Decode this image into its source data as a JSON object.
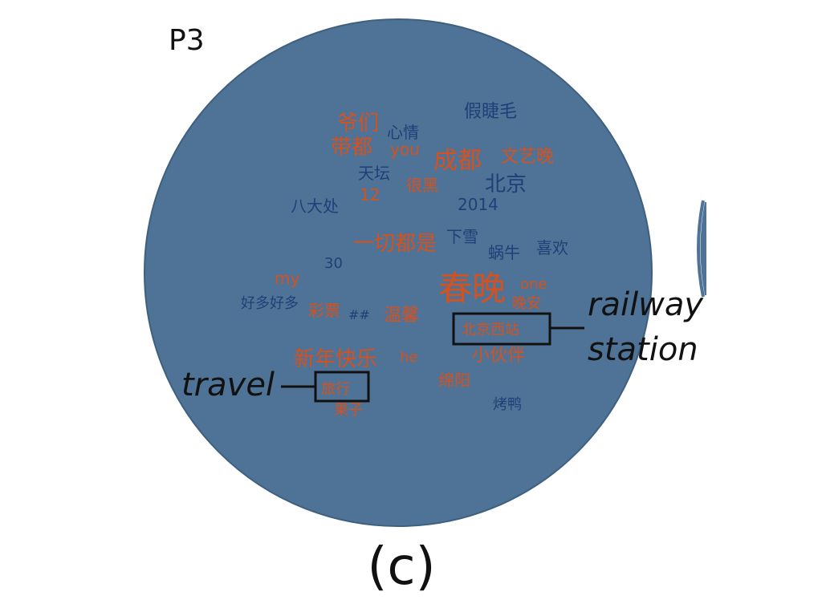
{
  "panel_label": "P3",
  "caption": "(c)",
  "colors": {
    "circle": "#4f7396",
    "circle_edge": "#3f5f7e",
    "orange": "#d4521f",
    "navy": "#1f3f78",
    "box": "#111111"
  },
  "words": [
    {
      "text": "爷们",
      "color": "orange"
    },
    {
      "text": "心情",
      "color": "navy"
    },
    {
      "text": "假睫毛",
      "color": "navy"
    },
    {
      "text": "带都",
      "color": "orange"
    },
    {
      "text": "you",
      "color": "orange"
    },
    {
      "text": "成都",
      "color": "orange"
    },
    {
      "text": "文艺晚",
      "color": "orange"
    },
    {
      "text": "天坛",
      "color": "navy"
    },
    {
      "text": "很黑",
      "color": "orange"
    },
    {
      "text": "北京",
      "color": "navy"
    },
    {
      "text": "12",
      "color": "orange"
    },
    {
      "text": "八大处",
      "color": "navy"
    },
    {
      "text": "2014",
      "color": "navy"
    },
    {
      "text": "一切都是",
      "color": "orange"
    },
    {
      "text": "下雪",
      "color": "navy"
    },
    {
      "text": "蜗牛",
      "color": "navy"
    },
    {
      "text": "喜欢",
      "color": "navy"
    },
    {
      "text": "30",
      "color": "navy"
    },
    {
      "text": "my",
      "color": "orange"
    },
    {
      "text": "春晚",
      "color": "orange"
    },
    {
      "text": "one",
      "color": "orange"
    },
    {
      "text": "好多好多",
      "color": "navy"
    },
    {
      "text": "晚安",
      "color": "orange"
    },
    {
      "text": "彩票",
      "color": "orange"
    },
    {
      "text": "##",
      "color": "navy"
    },
    {
      "text": "温馨",
      "color": "orange"
    },
    {
      "text": "北京西站",
      "color": "orange"
    },
    {
      "text": "小伙伴",
      "color": "orange"
    },
    {
      "text": "新年快乐",
      "color": "orange"
    },
    {
      "text": "he",
      "color": "orange"
    },
    {
      "text": "绵阳",
      "color": "orange"
    },
    {
      "text": "旅行",
      "color": "orange"
    },
    {
      "text": "烤鸭",
      "color": "navy"
    },
    {
      "text": "果子",
      "color": "orange"
    }
  ],
  "callouts": {
    "travel": {
      "label": "travel"
    },
    "railway": {
      "label_line1": "railway",
      "label_line2": "station"
    }
  }
}
